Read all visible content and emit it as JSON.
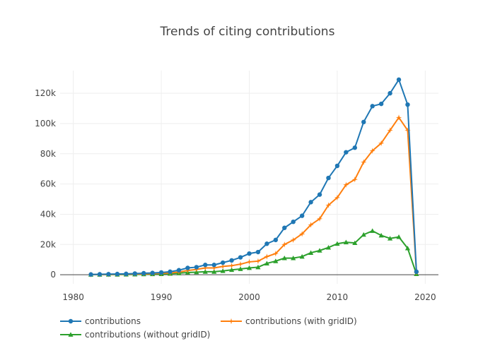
{
  "chart_data": {
    "type": "line",
    "title": "Trends of citing contributions",
    "xlabel": "",
    "ylabel": "",
    "xlim": [
      1978.5,
      2021.5
    ],
    "ylim": [
      -6000,
      135000
    ],
    "x_ticks": [
      1980,
      1990,
      2000,
      2010,
      2020
    ],
    "x_tick_labels": [
      "1980",
      "1990",
      "2000",
      "2010",
      "2020"
    ],
    "y_ticks": [
      0,
      20000,
      40000,
      60000,
      80000,
      100000,
      120000
    ],
    "y_tick_labels": [
      "0",
      "20k",
      "40k",
      "60k",
      "80k",
      "100k",
      "120k"
    ],
    "grid": true,
    "legend_position": "bottom",
    "x": [
      1982,
      1983,
      1984,
      1985,
      1986,
      1987,
      1988,
      1989,
      1990,
      1991,
      1992,
      1993,
      1994,
      1995,
      1996,
      1997,
      1998,
      1999,
      2000,
      2001,
      2002,
      2003,
      2004,
      2005,
      2006,
      2007,
      2008,
      2009,
      2010,
      2011,
      2012,
      2013,
      2014,
      2015,
      2016,
      2017,
      2018,
      2019
    ],
    "series": [
      {
        "name": "contributions",
        "color": "#1f77b4",
        "marker": "circle",
        "values": [
          200,
          300,
          400,
          500,
          600,
          800,
          1000,
          1200,
          1500,
          2000,
          3000,
          4500,
          5000,
          6500,
          6500,
          8000,
          9500,
          11500,
          14000,
          15000,
          20500,
          23000,
          31000,
          35000,
          39000,
          48000,
          53000,
          64000,
          72000,
          81000,
          84000,
          101000,
          111500,
          113000,
          120000,
          129000,
          112500,
          2000
        ]
      },
      {
        "name": "contributions (with gridID)",
        "color": "#ff7f0e",
        "marker": "star",
        "values": [
          100,
          150,
          200,
          300,
          400,
          500,
          600,
          800,
          1000,
          1200,
          1800,
          2800,
          3500,
          4500,
          4500,
          5500,
          6000,
          7000,
          8500,
          9000,
          12000,
          14000,
          20000,
          23000,
          27000,
          33000,
          37000,
          46000,
          51000,
          59500,
          63000,
          74500,
          82000,
          87000,
          95500,
          104000,
          95500,
          1500
        ]
      },
      {
        "name": "contributions (without gridID)",
        "color": "#2ca02c",
        "marker": "triangle",
        "values": [
          50,
          80,
          120,
          150,
          200,
          250,
          350,
          450,
          500,
          700,
          1000,
          1500,
          1700,
          2000,
          2000,
          2500,
          3200,
          3800,
          4500,
          5000,
          7500,
          9000,
          11000,
          11000,
          12000,
          14500,
          16000,
          18000,
          20500,
          21500,
          21000,
          26500,
          29000,
          26000,
          24000,
          25000,
          17500,
          500
        ]
      }
    ]
  }
}
